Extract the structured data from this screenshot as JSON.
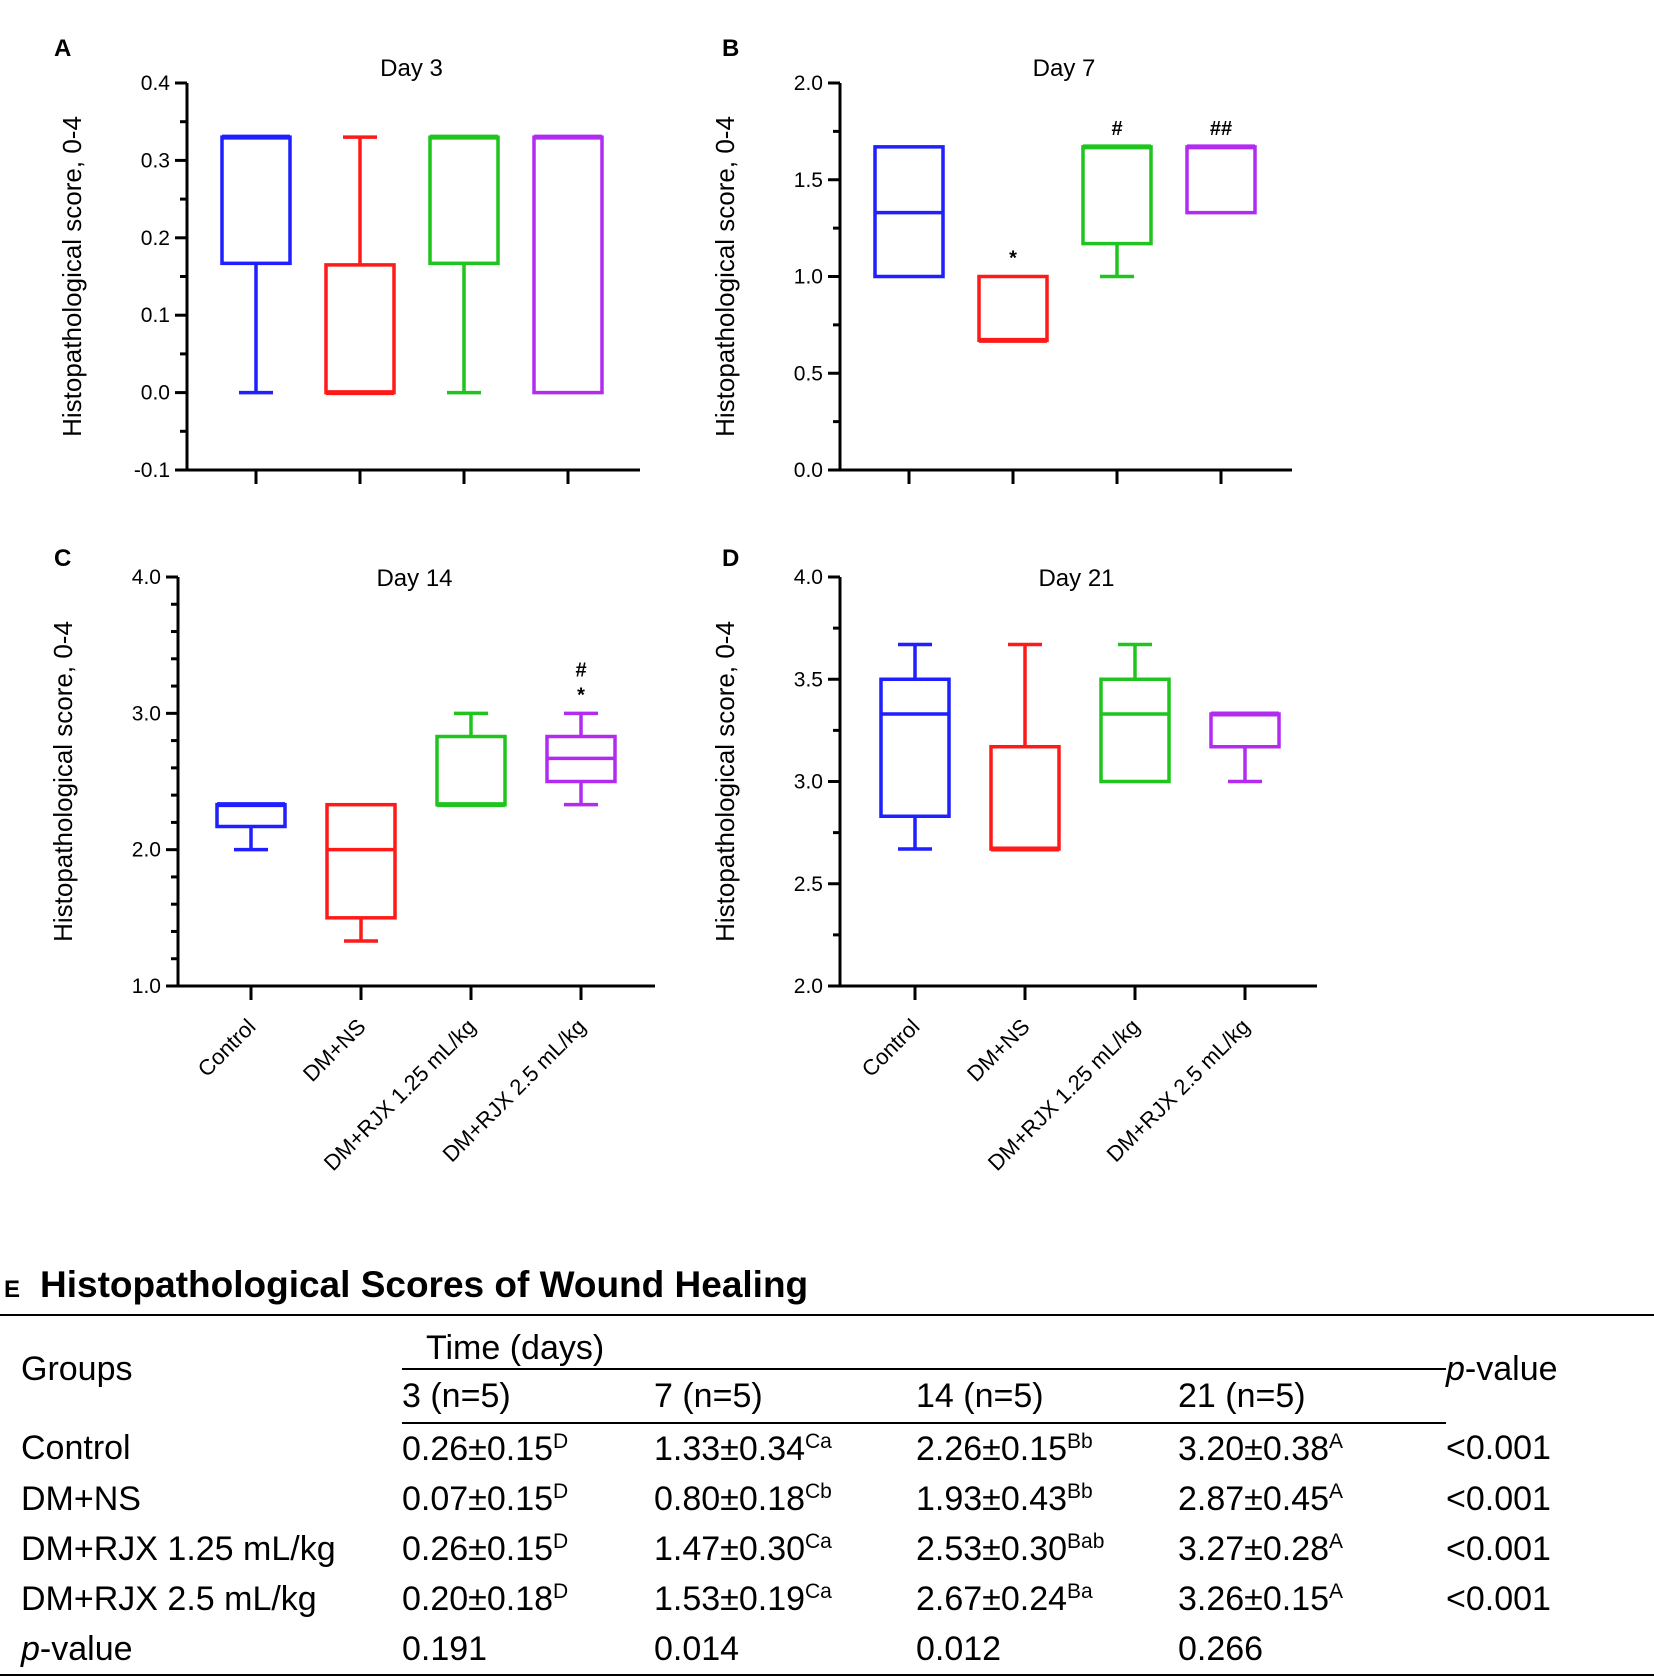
{
  "colors": {
    "Control": "#1f1fff",
    "DM+NS": "#ff1a1a",
    "DM+RJX 1.25 mL/kg": "#1fc41f",
    "DM+RJX 2.5 mL/kg": "#b12cf0"
  },
  "chart_data": [
    {
      "panel": "A",
      "type": "box",
      "title": "Day 3",
      "ylabel": "Histopathological score, 0-4",
      "ylim": [
        -0.1,
        0.4
      ],
      "yticks": [
        "-0.1",
        "0.0",
        "0.1",
        "0.2",
        "0.3",
        "0.4"
      ],
      "categories": [
        "Control",
        "DM+NS",
        "DM+RJX 1.25 mL/kg",
        "DM+RJX 2.5 mL/kg"
      ],
      "show_category_labels": false,
      "boxes": [
        {
          "min": 0.0,
          "q1": 0.167,
          "median": 0.33,
          "q3": 0.33,
          "max": 0.33,
          "annot": []
        },
        {
          "min": 0.0,
          "q1": 0.0,
          "median": 0.0,
          "q3": 0.165,
          "max": 0.33,
          "annot": []
        },
        {
          "min": 0.0,
          "q1": 0.167,
          "median": 0.33,
          "q3": 0.33,
          "max": 0.33,
          "annot": []
        },
        {
          "min": 0.0,
          "q1": 0.0,
          "median": 0.33,
          "q3": 0.33,
          "max": 0.33,
          "annot": []
        }
      ]
    },
    {
      "panel": "B",
      "type": "box",
      "title": "Day 7",
      "ylabel": "Histopathological score, 0-4",
      "ylim": [
        0.0,
        2.0
      ],
      "yticks": [
        "0.0",
        "0.5",
        "1.0",
        "1.5",
        "2.0"
      ],
      "categories": [
        "Control",
        "DM+NS",
        "DM+RJX 1.25 mL/kg",
        "DM+RJX 2.5 mL/kg"
      ],
      "show_category_labels": false,
      "boxes": [
        {
          "min": 1.0,
          "q1": 1.0,
          "median": 1.33,
          "q3": 1.67,
          "max": 1.67,
          "annot": []
        },
        {
          "min": 0.67,
          "q1": 0.67,
          "median": 0.67,
          "q3": 1.0,
          "max": 1.0,
          "annot": [
            "*"
          ]
        },
        {
          "min": 1.0,
          "q1": 1.17,
          "median": 1.67,
          "q3": 1.67,
          "max": 1.67,
          "annot": [
            "#"
          ]
        },
        {
          "min": 1.33,
          "q1": 1.33,
          "median": 1.67,
          "q3": 1.67,
          "max": 1.67,
          "annot": [
            "##"
          ]
        }
      ]
    },
    {
      "panel": "C",
      "type": "box",
      "title": "Day 14",
      "ylabel": "Histopathological score, 0-4",
      "ylim": [
        1.0,
        4.0
      ],
      "yticks": [
        "1.0",
        "2.0",
        "3.0",
        "4.0"
      ],
      "categories": [
        "Control",
        "DM+NS",
        "DM+RJX 1.25 mL/kg",
        "DM+RJX 2.5 mL/kg"
      ],
      "show_category_labels": true,
      "boxes": [
        {
          "min": 2.0,
          "q1": 2.17,
          "median": 2.33,
          "q3": 2.33,
          "max": 2.33,
          "annot": []
        },
        {
          "min": 1.33,
          "q1": 1.5,
          "median": 2.0,
          "q3": 2.33,
          "max": 2.33,
          "annot": []
        },
        {
          "min": 2.33,
          "q1": 2.33,
          "median": 2.33,
          "q3": 2.83,
          "max": 3.0,
          "annot": []
        },
        {
          "min": 2.33,
          "q1": 2.5,
          "median": 2.67,
          "q3": 2.83,
          "max": 3.0,
          "annot": [
            "*",
            "#"
          ]
        }
      ]
    },
    {
      "panel": "D",
      "type": "box",
      "title": "Day 21",
      "ylabel": "Histopathological score, 0-4",
      "ylim": [
        2.0,
        4.0
      ],
      "yticks": [
        "2.0",
        "2.5",
        "3.0",
        "3.5",
        "4.0"
      ],
      "categories": [
        "Control",
        "DM+NS",
        "DM+RJX 1.25 mL/kg",
        "DM+RJX 2.5 mL/kg"
      ],
      "show_category_labels": true,
      "boxes": [
        {
          "min": 2.67,
          "q1": 2.83,
          "median": 3.33,
          "q3": 3.5,
          "max": 3.67,
          "annot": []
        },
        {
          "min": 2.67,
          "q1": 2.67,
          "median": 2.67,
          "q3": 3.17,
          "max": 3.67,
          "annot": []
        },
        {
          "min": 3.0,
          "q1": 3.0,
          "median": 3.33,
          "q3": 3.5,
          "max": 3.67,
          "annot": []
        },
        {
          "min": 3.0,
          "q1": 3.17,
          "median": 3.33,
          "q3": 3.33,
          "max": 3.33,
          "annot": []
        }
      ]
    }
  ],
  "table": {
    "letter": "E",
    "title": "Histopathological Scores of Wound Healing",
    "groups_header": "Groups",
    "time_header": "Time (days)",
    "pvalue_prefix": "p",
    "pvalue_suffix": "-value",
    "days": [
      "3 (n=5)",
      "7 (n=5)",
      "14 (n=5)",
      "21 (n=5)"
    ],
    "rows": [
      {
        "group": "Control",
        "cells": [
          {
            "v": "0.26±0.15",
            "s": "D"
          },
          {
            "v": "1.33±0.34",
            "s": "Ca"
          },
          {
            "v": "2.26±0.15",
            "s": "Bb"
          },
          {
            "v": "3.20±0.38",
            "s": "A"
          }
        ],
        "p": "<0.001"
      },
      {
        "group": "DM+NS",
        "cells": [
          {
            "v": "0.07±0.15",
            "s": "D"
          },
          {
            "v": "0.80±0.18",
            "s": "Cb"
          },
          {
            "v": "1.93±0.43",
            "s": "Bb"
          },
          {
            "v": "2.87±0.45",
            "s": "A"
          }
        ],
        "p": "<0.001"
      },
      {
        "group": "DM+RJX 1.25 mL/kg",
        "cells": [
          {
            "v": "0.26±0.15",
            "s": "D"
          },
          {
            "v": "1.47±0.30",
            "s": "Ca"
          },
          {
            "v": "2.53±0.30",
            "s": "Bab"
          },
          {
            "v": "3.27±0.28",
            "s": "A"
          }
        ],
        "p": "<0.001"
      },
      {
        "group": "DM+RJX 2.5 mL/kg",
        "cells": [
          {
            "v": "0.20±0.18",
            "s": "D"
          },
          {
            "v": "1.53±0.19",
            "s": "Ca"
          },
          {
            "v": "2.67±0.24",
            "s": "Ba"
          },
          {
            "v": "3.26±0.15",
            "s": "A"
          }
        ],
        "p": "<0.001"
      }
    ],
    "pvalue_row": [
      "0.191",
      "0.014",
      "0.012",
      "0.266"
    ]
  }
}
